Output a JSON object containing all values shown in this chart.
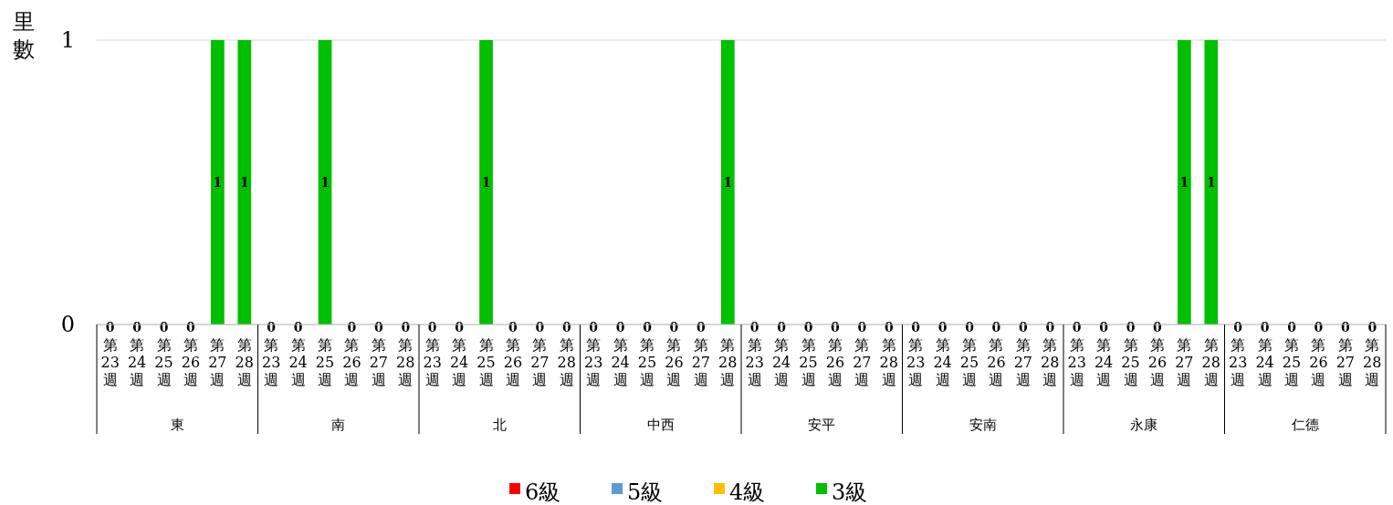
{
  "chart_data": {
    "type": "bar",
    "stacked": true,
    "ylabel": "里數",
    "categories": [
      "第23週",
      "第24週",
      "第25週",
      "第26週",
      "第27週",
      "第28週",
      "第23週",
      "第24週",
      "第25週",
      "第26週",
      "第27週",
      "第28週",
      "第23週",
      "第24週",
      "第25週",
      "第26週",
      "第27週",
      "第28週",
      "第23週",
      "第24週",
      "第25週",
      "第26週",
      "第27週",
      "第28週",
      "第23週",
      "第24週",
      "第25週",
      "第26週",
      "第27週",
      "第28週",
      "第23週",
      "第24週",
      "第25週",
      "第26週",
      "第27週",
      "第28週",
      "第23週",
      "第24週",
      "第25週",
      "第26週",
      "第27週",
      "第28週",
      "第23週",
      "第24週",
      "第25週",
      "第26週",
      "第27週",
      "第28週"
    ],
    "annotations": [
      "東",
      "南",
      "北",
      "中西",
      "安平",
      "安南",
      "永康",
      "仁德"
    ],
    "series": [
      {
        "name": "6級",
        "color": "#ff0000",
        "values": [
          0,
          0,
          0,
          0,
          0,
          0,
          0,
          0,
          0,
          0,
          0,
          0,
          0,
          0,
          0,
          0,
          0,
          0,
          0,
          0,
          0,
          0,
          0,
          0,
          0,
          0,
          0,
          0,
          0,
          0,
          0,
          0,
          0,
          0,
          0,
          0,
          0,
          0,
          0,
          0,
          0,
          0,
          0,
          0,
          0,
          0,
          0,
          0
        ]
      },
      {
        "name": "5級",
        "color": "#5b9bd5",
        "values": [
          0,
          0,
          0,
          0,
          0,
          0,
          0,
          0,
          0,
          0,
          0,
          0,
          0,
          0,
          0,
          0,
          0,
          0,
          0,
          0,
          0,
          0,
          0,
          0,
          0,
          0,
          0,
          0,
          0,
          0,
          0,
          0,
          0,
          0,
          0,
          0,
          0,
          0,
          0,
          0,
          0,
          0,
          0,
          0,
          0,
          0,
          0,
          0
        ]
      },
      {
        "name": "4級",
        "color": "#ffc000",
        "values": [
          0,
          0,
          0,
          0,
          0,
          0,
          0,
          0,
          0,
          0,
          0,
          0,
          0,
          0,
          0,
          0,
          0,
          0,
          0,
          0,
          0,
          0,
          0,
          0,
          0,
          0,
          0,
          0,
          0,
          0,
          0,
          0,
          0,
          0,
          0,
          0,
          0,
          0,
          0,
          0,
          0,
          0,
          0,
          0,
          0,
          0,
          0,
          0
        ]
      },
      {
        "name": "3級",
        "color": "#00c000",
        "values": [
          0,
          0,
          0,
          0,
          1,
          1,
          0,
          0,
          1,
          0,
          0,
          0,
          0,
          0,
          1,
          0,
          0,
          0,
          0,
          0,
          0,
          0,
          0,
          1,
          0,
          0,
          0,
          0,
          0,
          0,
          0,
          0,
          0,
          0,
          0,
          0,
          0,
          0,
          0,
          0,
          1,
          1,
          0,
          0,
          0,
          0,
          0,
          0
        ],
        "value_labels": [
          "0",
          "0",
          "0",
          "0",
          "1",
          "1",
          "0",
          "0",
          "1",
          "0",
          "0",
          "0",
          "0",
          "0",
          "1",
          "0",
          "0",
          "0",
          "0",
          "0",
          "0",
          "0",
          "0",
          "1",
          "0",
          "0",
          "0",
          "0",
          "0",
          "0",
          "0",
          "0",
          "0",
          "0",
          "0",
          "0",
          "0",
          "0",
          "0",
          "0",
          "1",
          "1",
          "0",
          "0",
          "0",
          "0",
          "0",
          "0"
        ]
      }
    ],
    "ylim": [
      0,
      1
    ],
    "yticks": [
      0,
      1
    ],
    "grid": "y",
    "legend": "bottom"
  }
}
